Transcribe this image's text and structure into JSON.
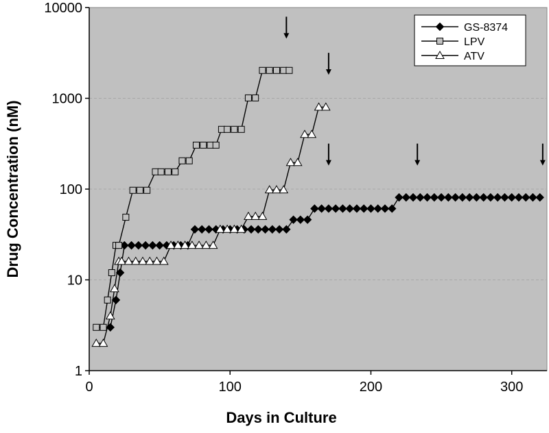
{
  "chart_data": {
    "type": "line",
    "title": "",
    "xlabel": "Days in Culture",
    "ylabel": "Drug Concentration (nM)",
    "xlim": [
      0,
      325
    ],
    "ylim": [
      1,
      10000
    ],
    "y_scale": "log",
    "x_ticks": [
      0,
      100,
      200,
      300
    ],
    "x_tick_labels": [
      "0",
      "100",
      "200",
      "300"
    ],
    "y_ticks": [
      1,
      10,
      100,
      1000,
      10000
    ],
    "y_tick_labels": [
      "1",
      "10",
      "100",
      "1000",
      "10000"
    ],
    "grid": "horizontal dashed at major y ticks",
    "plot_background": "#c0c0c0",
    "legend_position": "top-right",
    "series": [
      {
        "name": "GS-8374",
        "marker": "diamond",
        "marker_color": "#000000",
        "line_color": "#000000",
        "x": [
          15,
          19,
          22,
          25,
          30,
          35,
          40,
          45,
          50,
          55,
          60,
          65,
          70,
          75,
          80,
          85,
          90,
          95,
          100,
          105,
          110,
          115,
          120,
          125,
          130,
          135,
          140,
          145,
          150,
          155,
          160,
          165,
          170,
          175,
          180,
          185,
          190,
          195,
          200,
          205,
          210,
          215,
          220,
          225,
          230,
          235,
          240,
          245,
          250,
          255,
          260,
          265,
          270,
          275,
          280,
          285,
          290,
          295,
          300,
          305,
          310,
          315,
          320
        ],
        "y": [
          3,
          6,
          12,
          24,
          24,
          24,
          24,
          24,
          24,
          24,
          24,
          24,
          24,
          36,
          36,
          36,
          36,
          36,
          36,
          36,
          36,
          36,
          36,
          36,
          36,
          36,
          36,
          46,
          46,
          46,
          61,
          61,
          61,
          61,
          61,
          61,
          61,
          61,
          61,
          61,
          61,
          61,
          81,
          81,
          81,
          81,
          81,
          81,
          81,
          81,
          81,
          81,
          81,
          81,
          81,
          81,
          81,
          81,
          81,
          81,
          81,
          81,
          81
        ]
      },
      {
        "name": "LPV",
        "marker": "square",
        "marker_color": "#c0c0c0",
        "line_color": "#000000",
        "x": [
          5,
          10,
          13,
          16,
          19,
          21,
          26,
          31,
          36,
          41,
          47,
          51,
          56,
          61,
          66,
          71,
          76,
          81,
          86,
          90,
          94,
          98,
          103,
          108,
          113,
          118,
          123,
          128,
          133,
          138,
          142
        ],
        "y": [
          3,
          3,
          6,
          12,
          24,
          24,
          49,
          97,
          97,
          97,
          155,
          155,
          155,
          155,
          205,
          205,
          305,
          305,
          305,
          305,
          455,
          455,
          455,
          455,
          1010,
          1010,
          2030,
          2030,
          2030,
          2030,
          2030
        ]
      },
      {
        "name": "ATV",
        "marker": "triangle",
        "marker_color": "#ffffff",
        "line_color": "#000000",
        "x": [
          5,
          10,
          15,
          18,
          21,
          23,
          28,
          33,
          38,
          43,
          48,
          53,
          58,
          63,
          68,
          73,
          78,
          83,
          88,
          93,
          98,
          103,
          108,
          113,
          118,
          123,
          128,
          133,
          138,
          143,
          148,
          153,
          158,
          163,
          168
        ],
        "y": [
          2,
          2,
          4,
          8,
          16,
          16,
          16,
          16,
          16,
          16,
          16,
          16,
          24,
          24,
          24,
          24,
          24,
          24,
          24,
          36,
          36,
          36,
          36,
          50,
          50,
          50,
          98,
          98,
          98,
          196,
          196,
          400,
          400,
          800,
          800
        ]
      }
    ],
    "annotations": [
      {
        "type": "down-arrow",
        "x": 140,
        "y": 6000
      },
      {
        "type": "down-arrow",
        "x": 170,
        "y": 2400
      },
      {
        "type": "down-arrow",
        "x": 170,
        "y": 240
      },
      {
        "type": "down-arrow",
        "x": 233,
        "y": 240
      },
      {
        "type": "down-arrow",
        "x": 322,
        "y": 240
      }
    ]
  }
}
